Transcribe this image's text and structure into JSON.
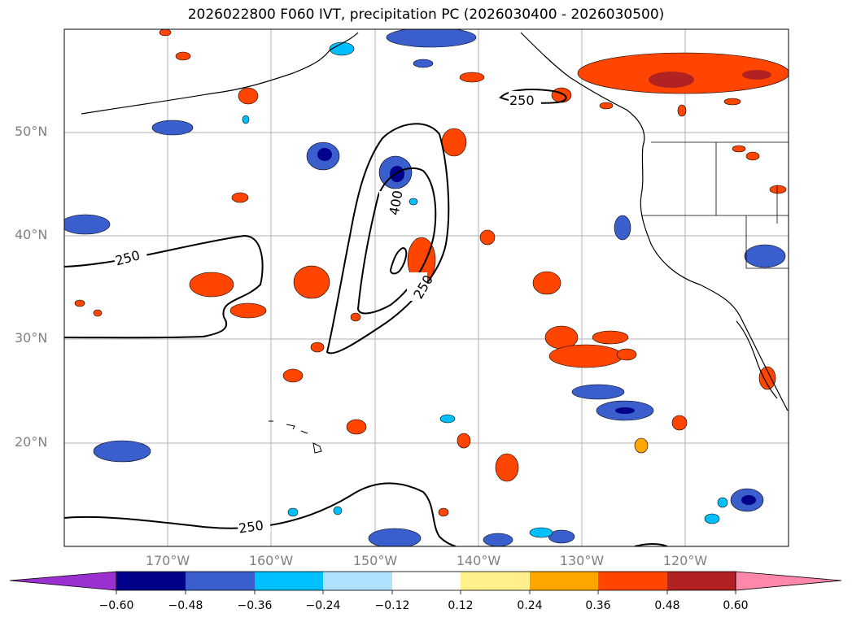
{
  "title": "2026022800 F060 IVT, precipitation PC (2026030400 - 2026030500)",
  "map": {
    "lat_labels": [
      "50°N",
      "40°N",
      "30°N",
      "20°N"
    ],
    "lon_labels": [
      "170°W",
      "160°W",
      "150°W",
      "140°W",
      "130°W",
      "120°W"
    ],
    "lon_range": [
      -180,
      -110
    ],
    "lat_range": [
      10,
      60
    ],
    "gridlines": true,
    "ivt_contour_labels": [
      "250",
      "250",
      "400",
      "250",
      "250"
    ],
    "ivt_contour_levels": [
      250,
      400
    ]
  },
  "colorbar": {
    "ticks": [
      "−0.60",
      "−0.48",
      "−0.36",
      "−0.24",
      "−0.12",
      "0.12",
      "0.24",
      "0.36",
      "0.48",
      "0.60"
    ],
    "colors": [
      "#9b30d0",
      "#00008b",
      "#3a5fcd",
      "#00bfff",
      "#b0e2ff",
      "#ffffff",
      "#fff08c",
      "#ffa500",
      "#ff4500",
      "#b22222",
      "#ff88aa"
    ]
  }
}
